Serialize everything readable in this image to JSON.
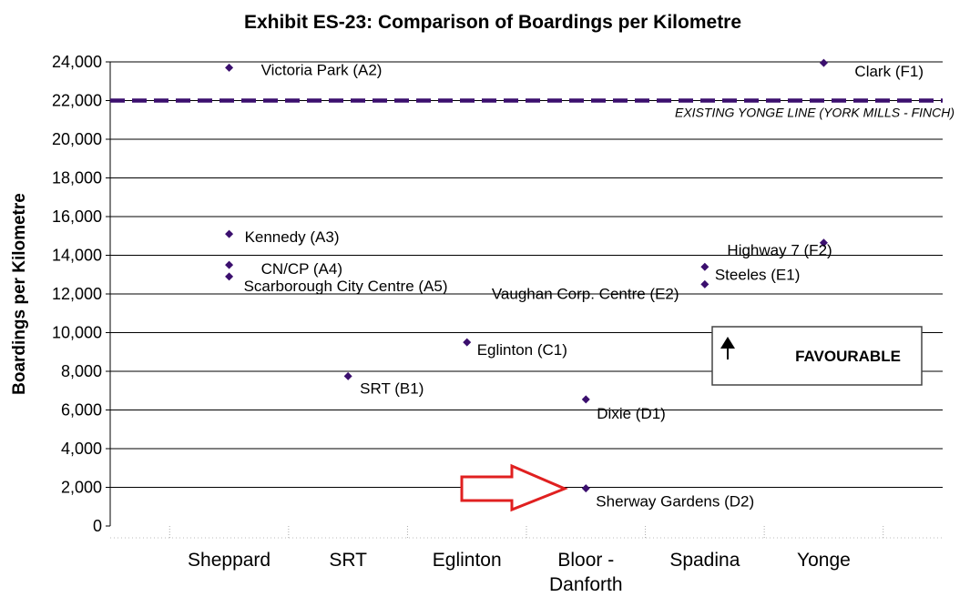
{
  "chart_data": {
    "type": "scatter",
    "title": "Exhibit ES-23:  Comparison of Boardings per Kilometre",
    "ylabel": "Boardings per Kilometre",
    "xlabel": "",
    "ylim": [
      0,
      24000
    ],
    "y_ticks": [
      "0",
      "2,000",
      "4,000",
      "6,000",
      "8,000",
      "10,000",
      "12,000",
      "14,000",
      "16,000",
      "18,000",
      "20,000",
      "22,000",
      "24,000"
    ],
    "categories": [
      {
        "lines": [
          "Sheppard"
        ]
      },
      {
        "lines": [
          "SRT"
        ]
      },
      {
        "lines": [
          "Eglinton"
        ]
      },
      {
        "lines": [
          "Bloor -",
          "Danforth"
        ]
      },
      {
        "lines": [
          "Spadina"
        ]
      },
      {
        "lines": [
          "Yonge"
        ]
      }
    ],
    "grid": "horizontal",
    "marker_color": "#3b0f6e",
    "points": [
      {
        "category": 0,
        "y": 23700,
        "label": "Victoria Park (A2)"
      },
      {
        "category": 0,
        "y": 15100,
        "label": "Kennedy (A3)"
      },
      {
        "category": 0,
        "y": 13500,
        "label": "CN/CP (A4)"
      },
      {
        "category": 0,
        "y": 12900,
        "label": "Scarborough City  Centre (A5)"
      },
      {
        "category": 1,
        "y": 7750,
        "label": "SRT (B1)"
      },
      {
        "category": 2,
        "y": 9500,
        "label": "Eglinton (C1)"
      },
      {
        "category": 3,
        "y": 6550,
        "label": "Dixie (D1)"
      },
      {
        "category": 3,
        "y": 1950,
        "label": "Sherway Gardens (D2)"
      },
      {
        "category": 4,
        "y": 13400,
        "label": "Steeles (E1)"
      },
      {
        "category": 4,
        "y": 12500,
        "label": "Vaughan Corp. Centre (E2)"
      },
      {
        "category": 5,
        "y": 23950,
        "label": "Clark (F1)"
      },
      {
        "category": 5,
        "y": 14650,
        "label": "Highway 7 (F2)"
      }
    ],
    "reference_line": {
      "y": 22000,
      "label": "EXISTING YONGE LINE (YORK MILLS - FINCH)",
      "color": "#3b0f6e"
    },
    "annotations": {
      "favourable_box": "FAVOURABLE",
      "arrow_color": "#e02020"
    }
  }
}
